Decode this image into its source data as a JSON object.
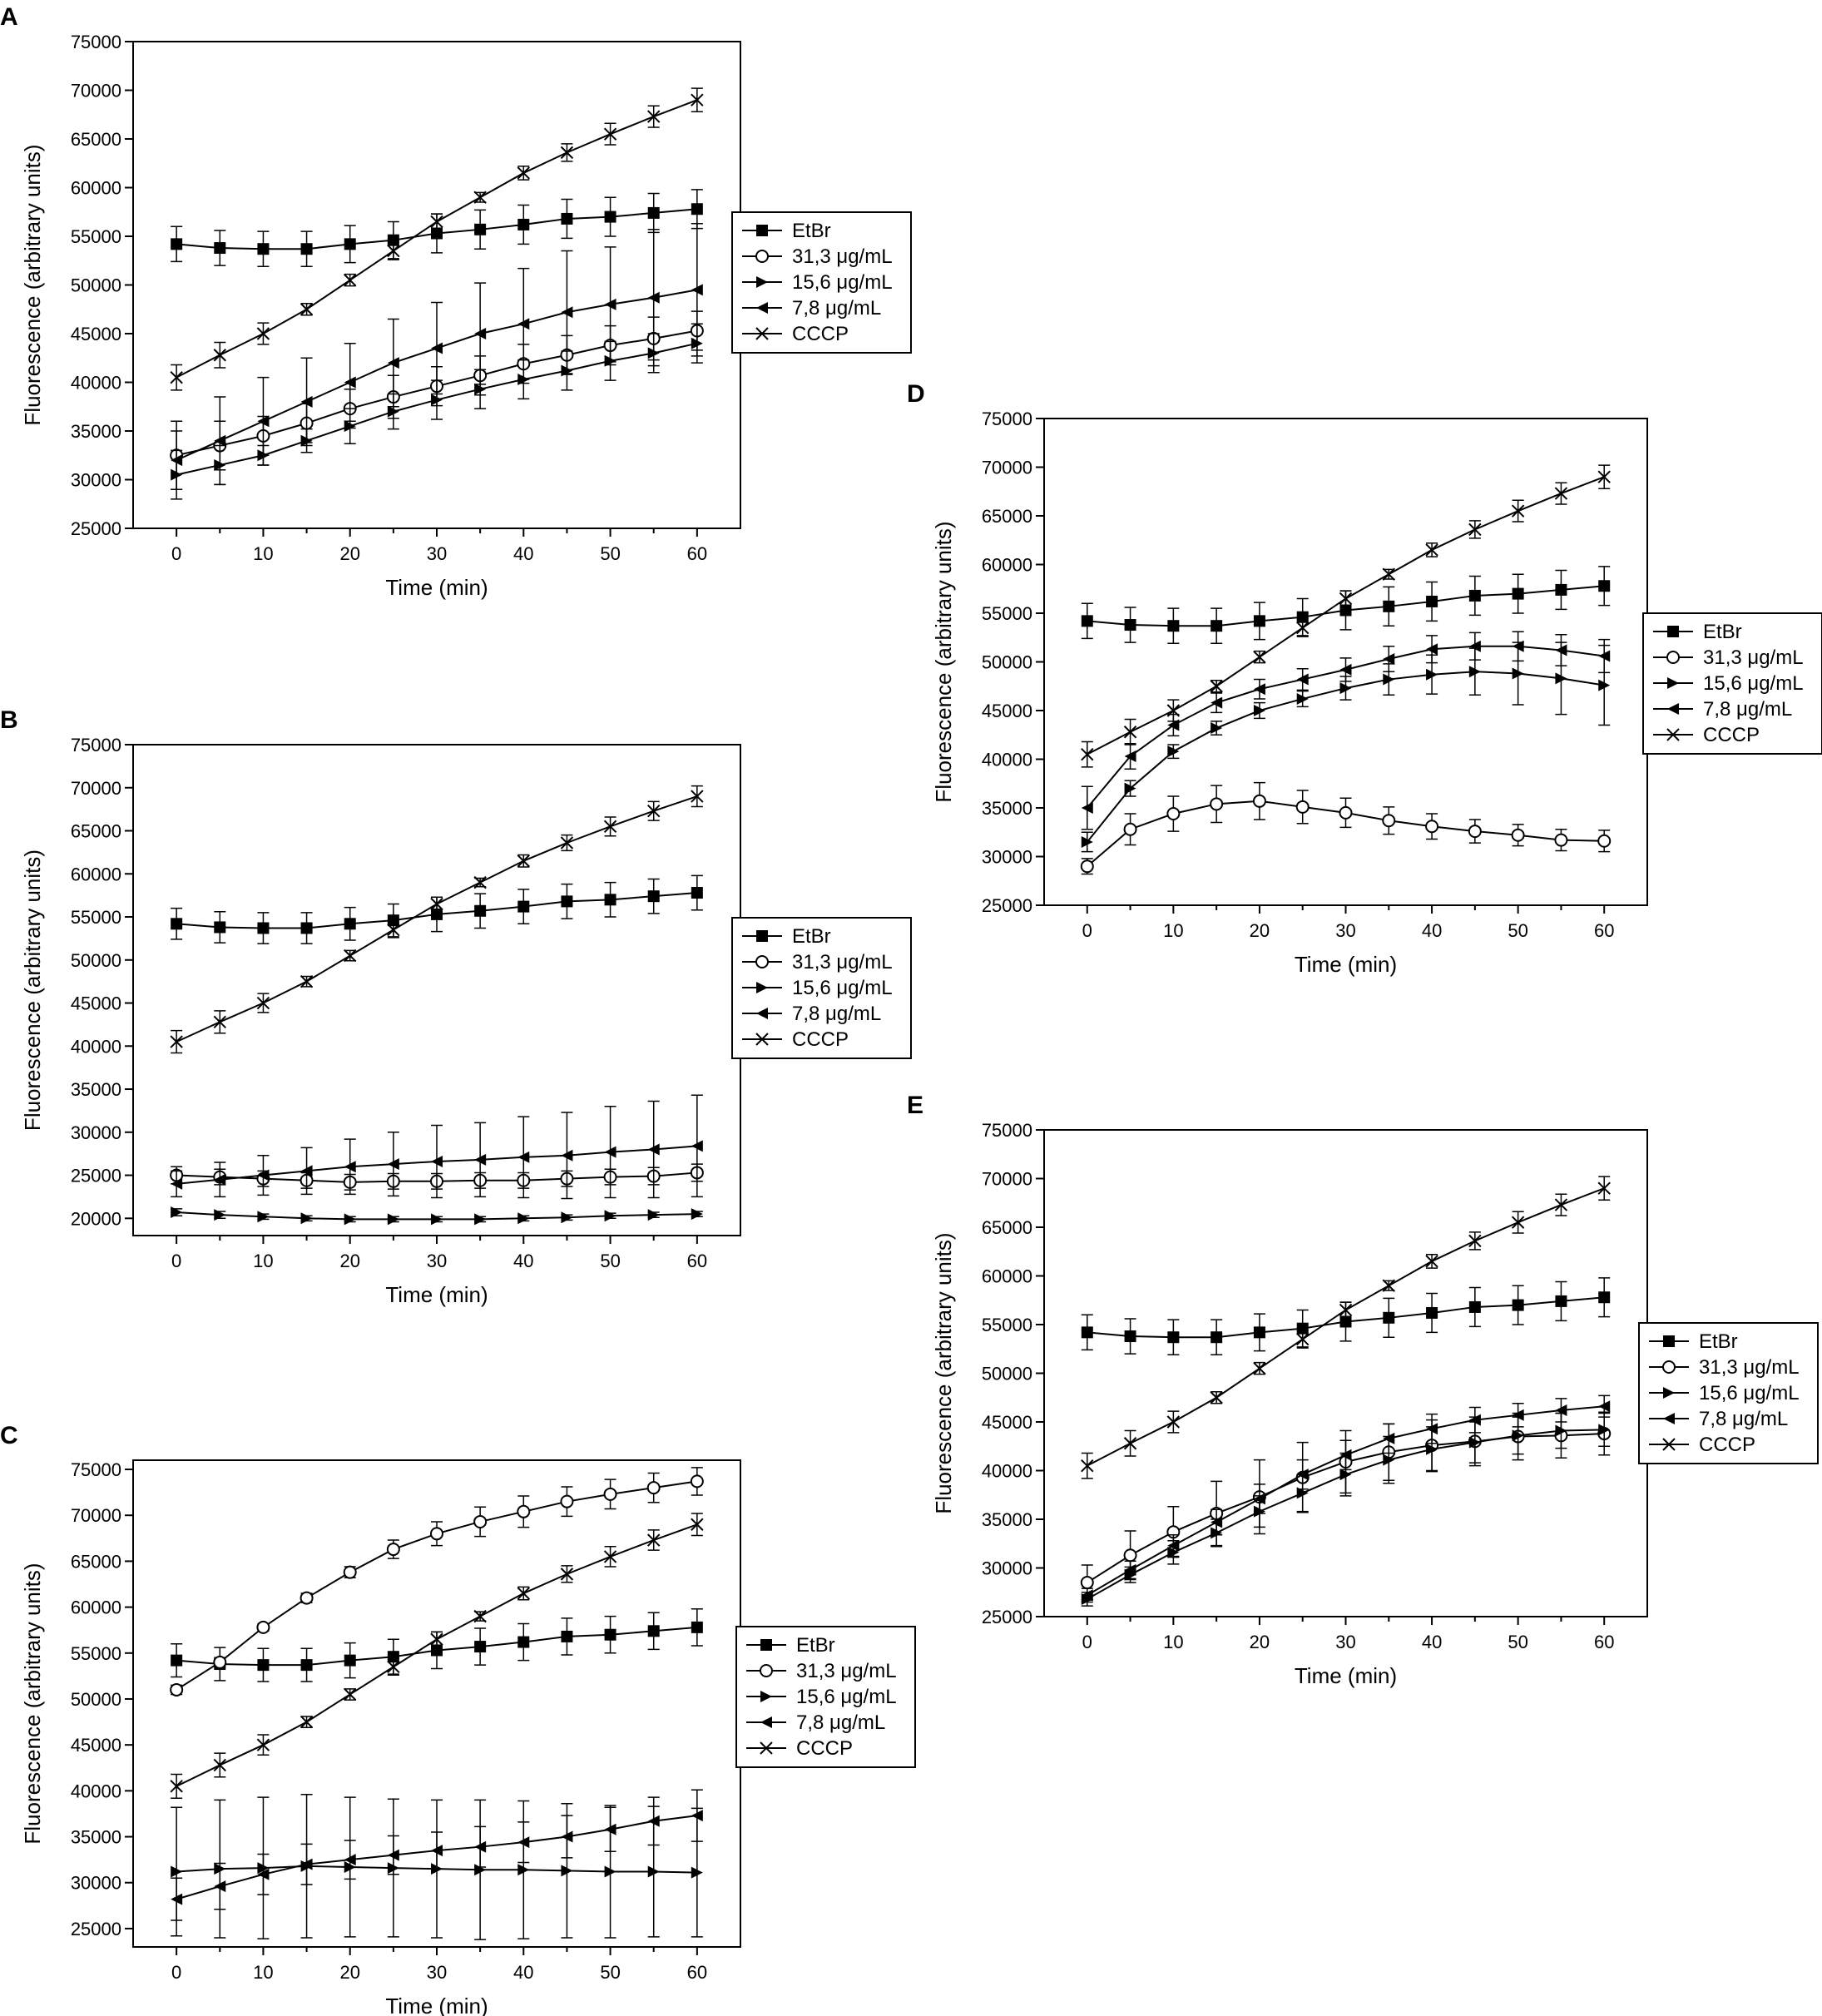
{
  "chart_data": [
    {
      "panel": "A",
      "type": "line",
      "xlabel": "Time (min)",
      "ylabel": "Fluorescence (arbitrary units)",
      "xlim": [
        -5,
        65
      ],
      "ylim": [
        25000,
        75000
      ],
      "x_ticks": [
        "0",
        "10",
        "20",
        "30",
        "40",
        "50",
        "60"
      ],
      "y_ticks": [
        "25000",
        "30000",
        "35000",
        "40000",
        "45000",
        "50000",
        "55000",
        "60000",
        "65000",
        "70000",
        "75000"
      ],
      "legend_position": "right",
      "x": [
        0,
        5,
        10,
        15,
        20,
        25,
        30,
        35,
        40,
        45,
        50,
        55,
        60
      ],
      "series": [
        {
          "name": "EtBr",
          "marker": "square",
          "values": [
            54200,
            53800,
            53700,
            53700,
            54200,
            54600,
            55300,
            55700,
            56200,
            56800,
            57000,
            57400,
            57800
          ],
          "errors": [
            1800,
            1800,
            1800,
            1800,
            1900,
            1900,
            2000,
            2000,
            2000,
            2000,
            2000,
            2000,
            2000
          ]
        },
        {
          "name": "31,3 μg/mL",
          "marker": "circle",
          "values": [
            32500,
            33500,
            34500,
            35800,
            37300,
            38500,
            39600,
            40700,
            41900,
            42800,
            43800,
            44500,
            45300
          ],
          "errors": [
            3500,
            2500,
            2000,
            2000,
            2000,
            2200,
            2000,
            2000,
            2000,
            2000,
            2000,
            2200,
            2000
          ]
        },
        {
          "name": "15,6 μg/mL",
          "marker": "triangle-right",
          "values": [
            30500,
            31500,
            32500,
            34000,
            35500,
            37000,
            38200,
            39300,
            40300,
            41200,
            42200,
            43000,
            44000
          ],
          "errors": [
            2500,
            2000,
            1000,
            1200,
            1800,
            1800,
            2000,
            2000,
            2000,
            2000,
            2000,
            2000,
            2000
          ]
        },
        {
          "name": "7,8 μg/mL",
          "marker": "triangle-left",
          "values": [
            32000,
            34000,
            36000,
            38000,
            40000,
            42000,
            43500,
            45000,
            46000,
            47200,
            48000,
            48700,
            49500
          ],
          "errors": [
            3000,
            4500,
            4500,
            4500,
            4000,
            4500,
            4700,
            5200,
            5700,
            6300,
            5900,
            7000,
            6800
          ]
        },
        {
          "name": "CCCP",
          "marker": "x",
          "values": [
            40500,
            42800,
            45000,
            47500,
            50500,
            53500,
            56500,
            59000,
            61500,
            63600,
            65500,
            67300,
            69000
          ],
          "errors": [
            1300,
            1300,
            1100,
            600,
            600,
            900,
            800,
            500,
            700,
            900,
            1100,
            1100,
            1200
          ]
        }
      ]
    },
    {
      "panel": "B",
      "type": "line",
      "xlabel": "Time (min)",
      "ylabel": "Fluorescence (arbitrary units)",
      "xlim": [
        -5,
        65
      ],
      "ylim": [
        18000,
        75000
      ],
      "x_ticks": [
        "0",
        "10",
        "20",
        "30",
        "40",
        "50",
        "60"
      ],
      "y_ticks": [
        "20000",
        "25000",
        "30000",
        "35000",
        "40000",
        "45000",
        "50000",
        "55000",
        "60000",
        "65000",
        "70000",
        "75000"
      ],
      "legend_position": "right",
      "x": [
        0,
        5,
        10,
        15,
        20,
        25,
        30,
        35,
        40,
        45,
        50,
        55,
        60
      ],
      "series": [
        {
          "name": "EtBr",
          "marker": "square",
          "values": [
            54200,
            53800,
            53700,
            53700,
            54200,
            54600,
            55300,
            55700,
            56200,
            56800,
            57000,
            57400,
            57800
          ],
          "errors": [
            1800,
            1800,
            1800,
            1800,
            1900,
            1900,
            2000,
            2000,
            2000,
            2000,
            2000,
            2000,
            2000
          ]
        },
        {
          "name": "31,3 μg/mL",
          "marker": "circle",
          "values": [
            25000,
            24800,
            24600,
            24400,
            24200,
            24300,
            24300,
            24400,
            24400,
            24600,
            24800,
            24900,
            25300
          ],
          "errors": [
            1000,
            900,
            900,
            900,
            900,
            900,
            900,
            900,
            900,
            900,
            900,
            1000,
            1000
          ]
        },
        {
          "name": "15,6 μg/mL",
          "marker": "triangle-right",
          "values": [
            20700,
            20400,
            20200,
            20000,
            19900,
            19900,
            19900,
            19900,
            20000,
            20100,
            20300,
            20400,
            20500
          ],
          "errors": [
            400,
            400,
            300,
            300,
            300,
            300,
            300,
            300,
            300,
            300,
            300,
            300,
            300
          ]
        },
        {
          "name": "7,8 μg/mL",
          "marker": "triangle-left",
          "values": [
            24000,
            24500,
            25000,
            25500,
            26000,
            26300,
            26600,
            26800,
            27100,
            27300,
            27700,
            28000,
            28400
          ],
          "errors": [
            1500,
            2000,
            2300,
            2700,
            3200,
            3700,
            4200,
            4300,
            4700,
            5000,
            5300,
            5600,
            5900
          ]
        },
        {
          "name": "CCCP",
          "marker": "x",
          "values": [
            40500,
            42800,
            45000,
            47500,
            50500,
            53500,
            56500,
            59000,
            61500,
            63600,
            65500,
            67300,
            69000
          ],
          "errors": [
            1300,
            1300,
            1100,
            600,
            600,
            900,
            800,
            500,
            700,
            900,
            1100,
            1100,
            1200
          ]
        }
      ]
    },
    {
      "panel": "C",
      "type": "line",
      "xlabel": "Time (min)",
      "ylabel": "Fluorescence (arbitrary units)",
      "xlim": [
        -5,
        65
      ],
      "ylim": [
        23000,
        76000
      ],
      "x_ticks": [
        "0",
        "10",
        "20",
        "30",
        "40",
        "50",
        "60"
      ],
      "y_ticks": [
        "25000",
        "30000",
        "35000",
        "40000",
        "45000",
        "50000",
        "55000",
        "60000",
        "65000",
        "70000",
        "75000"
      ],
      "legend_position": "right",
      "x": [
        0,
        5,
        10,
        15,
        20,
        25,
        30,
        35,
        40,
        45,
        50,
        55,
        60
      ],
      "series": [
        {
          "name": "EtBr",
          "marker": "square",
          "values": [
            54200,
            53800,
            53700,
            53700,
            54200,
            54600,
            55300,
            55700,
            56200,
            56800,
            57000,
            57400,
            57800
          ],
          "errors": [
            1800,
            1800,
            1800,
            1800,
            1900,
            1900,
            2000,
            2000,
            2000,
            2000,
            2000,
            2000,
            2000
          ]
        },
        {
          "name": "31,3 μg/mL",
          "marker": "circle",
          "values": [
            51000,
            54000,
            57800,
            61000,
            63800,
            66300,
            68000,
            69300,
            70400,
            71500,
            72300,
            73000,
            73700
          ],
          "errors": [
            500,
            500,
            400,
            500,
            600,
            1000,
            1300,
            1600,
            1700,
            1600,
            1600,
            1600,
            1500
          ]
        },
        {
          "name": "15,6 μg/mL",
          "marker": "triangle-right",
          "values": [
            31200,
            31500,
            31600,
            31800,
            31700,
            31600,
            31500,
            31400,
            31400,
            31300,
            31200,
            31200,
            31100
          ],
          "errors": [
            7000,
            7500,
            7700,
            7800,
            7600,
            7500,
            7500,
            7600,
            7500,
            7300,
            7200,
            7100,
            7000
          ]
        },
        {
          "name": "7,8 μg/mL",
          "marker": "triangle-left",
          "values": [
            28200,
            29600,
            30900,
            32000,
            32500,
            33000,
            33500,
            33900,
            34400,
            35000,
            35800,
            36700,
            37300
          ],
          "errors": [
            2300,
            2500,
            2200,
            2200,
            2100,
            2100,
            2000,
            2200,
            2200,
            2300,
            2400,
            2600,
            2800
          ]
        },
        {
          "name": "CCCP",
          "marker": "x",
          "values": [
            40500,
            42800,
            45000,
            47500,
            50500,
            53500,
            56500,
            59000,
            61500,
            63600,
            65500,
            67300,
            69000
          ],
          "errors": [
            1300,
            1300,
            1100,
            600,
            600,
            900,
            800,
            500,
            700,
            900,
            1100,
            1100,
            1200
          ]
        }
      ]
    },
    {
      "panel": "D",
      "type": "line",
      "xlabel": "Time (min)",
      "ylabel": "Fluorescence (arbitrary units)",
      "xlim": [
        -5,
        65
      ],
      "ylim": [
        25000,
        75000
      ],
      "x_ticks": [
        "0",
        "10",
        "20",
        "30",
        "40",
        "50",
        "60"
      ],
      "y_ticks": [
        "25000",
        "30000",
        "35000",
        "40000",
        "45000",
        "50000",
        "55000",
        "60000",
        "65000",
        "70000",
        "75000"
      ],
      "legend_position": "right",
      "x": [
        0,
        5,
        10,
        15,
        20,
        25,
        30,
        35,
        40,
        45,
        50,
        55,
        60
      ],
      "series": [
        {
          "name": "EtBr",
          "marker": "square",
          "values": [
            54200,
            53800,
            53700,
            53700,
            54200,
            54600,
            55300,
            55700,
            56200,
            56800,
            57000,
            57400,
            57800
          ],
          "errors": [
            1800,
            1800,
            1800,
            1800,
            1900,
            1900,
            2000,
            2000,
            2000,
            2000,
            2000,
            2000,
            2000
          ]
        },
        {
          "name": "31,3 μg/mL",
          "marker": "circle",
          "values": [
            29000,
            32800,
            34400,
            35400,
            35700,
            35100,
            34500,
            33700,
            33100,
            32600,
            32200,
            31700,
            31600
          ],
          "errors": [
            800,
            1600,
            1800,
            1900,
            1900,
            1700,
            1500,
            1400,
            1300,
            1200,
            1100,
            1100,
            1100
          ]
        },
        {
          "name": "15,6 μg/mL",
          "marker": "triangle-right",
          "values": [
            31500,
            37000,
            40800,
            43200,
            45000,
            46200,
            47300,
            48200,
            48700,
            49000,
            48800,
            48300,
            47600
          ],
          "errors": [
            1000,
            800,
            700,
            700,
            800,
            800,
            1200,
            1600,
            2000,
            2400,
            3200,
            3700,
            4100
          ]
        },
        {
          "name": "7,8 μg/mL",
          "marker": "triangle-left",
          "values": [
            35000,
            40300,
            43500,
            45800,
            47200,
            48200,
            49200,
            50300,
            51300,
            51600,
            51600,
            51200,
            50600
          ],
          "errors": [
            2200,
            1300,
            1100,
            1000,
            1000,
            1100,
            1200,
            1300,
            1400,
            1400,
            1500,
            1600,
            1700
          ]
        },
        {
          "name": "CCCP",
          "marker": "x",
          "values": [
            40500,
            42800,
            45000,
            47500,
            50500,
            53500,
            56500,
            59000,
            61500,
            63600,
            65500,
            67300,
            69000
          ],
          "errors": [
            1300,
            1300,
            1100,
            600,
            600,
            900,
            800,
            500,
            700,
            900,
            1100,
            1100,
            1200
          ]
        }
      ]
    },
    {
      "panel": "E",
      "type": "line",
      "xlabel": "Time (min)",
      "ylabel": "Fluorescence (arbitrary units)",
      "xlim": [
        -5,
        65
      ],
      "ylim": [
        25000,
        75000
      ],
      "x_ticks": [
        "0",
        "10",
        "20",
        "30",
        "40",
        "50",
        "60"
      ],
      "y_ticks": [
        "25000",
        "30000",
        "35000",
        "40000",
        "45000",
        "50000",
        "55000",
        "60000",
        "65000",
        "70000",
        "75000"
      ],
      "legend_position": "right",
      "x": [
        0,
        5,
        10,
        15,
        20,
        25,
        30,
        35,
        40,
        45,
        50,
        55,
        60
      ],
      "series": [
        {
          "name": "EtBr",
          "marker": "square",
          "values": [
            54200,
            53800,
            53700,
            53700,
            54200,
            54600,
            55300,
            55700,
            56200,
            56800,
            57000,
            57400,
            57800
          ],
          "errors": [
            1800,
            1800,
            1800,
            1800,
            1900,
            1900,
            2000,
            2000,
            2000,
            2000,
            2000,
            2000,
            2000
          ]
        },
        {
          "name": "31,3 μg/mL",
          "marker": "circle",
          "values": [
            28500,
            31300,
            33700,
            35600,
            37300,
            39300,
            40900,
            41900,
            42600,
            43000,
            43500,
            43600,
            43800
          ],
          "errors": [
            1800,
            2500,
            2600,
            3300,
            3800,
            3600,
            3200,
            2900,
            2600,
            2500,
            2400,
            2300,
            2200
          ]
        },
        {
          "name": "15,6 μg/mL",
          "marker": "triangle-right",
          "values": [
            26800,
            29300,
            31600,
            33600,
            35800,
            37700,
            39600,
            41100,
            42200,
            42900,
            43600,
            44100,
            44200
          ],
          "errors": [
            700,
            800,
            1200,
            1400,
            1600,
            1900,
            2200,
            2400,
            2300,
            2100,
            1900,
            1800,
            1700
          ]
        },
        {
          "name": "7,8 μg/mL",
          "marker": "triangle-left",
          "values": [
            27200,
            29800,
            32300,
            34700,
            37100,
            39600,
            41600,
            43300,
            44300,
            45200,
            45700,
            46200,
            46600
          ],
          "errors": [
            700,
            900,
            1100,
            1300,
            1500,
            1500,
            1500,
            1500,
            1500,
            1300,
            1200,
            1200,
            1100
          ]
        },
        {
          "name": "CCCP",
          "marker": "x",
          "values": [
            40500,
            42800,
            45000,
            47500,
            50500,
            53500,
            56500,
            59000,
            61500,
            63600,
            65500,
            67300,
            69000
          ],
          "errors": [
            1300,
            1300,
            1100,
            600,
            600,
            900,
            800,
            500,
            700,
            900,
            1100,
            1100,
            1200
          ]
        }
      ]
    }
  ]
}
